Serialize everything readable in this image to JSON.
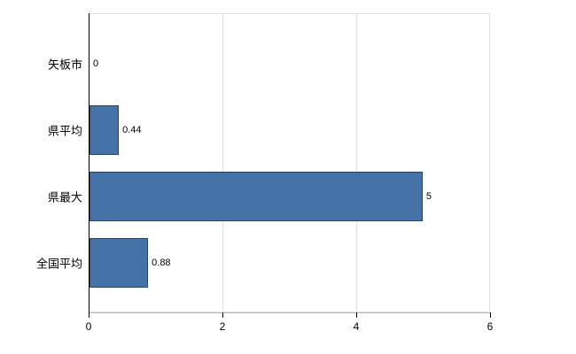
{
  "chart_data": {
    "type": "bar",
    "orientation": "horizontal",
    "title": "",
    "xlabel": "",
    "ylabel": "",
    "categories": [
      "矢板市",
      "県平均",
      "県最大",
      "全国平均"
    ],
    "values": [
      0,
      0.44,
      5,
      0.88
    ],
    "value_labels": [
      "0",
      "0.44",
      "5",
      "0.88"
    ],
    "xlim": [
      0,
      6
    ],
    "xticks": [
      0,
      2,
      4,
      6
    ],
    "grid": true,
    "legend": "none",
    "bar_color": "#4572a7",
    "bar_border_color": "#24426e",
    "axis_color": "#000000",
    "gridline_color": "#dddddd",
    "background_color": "#ffffff"
  }
}
